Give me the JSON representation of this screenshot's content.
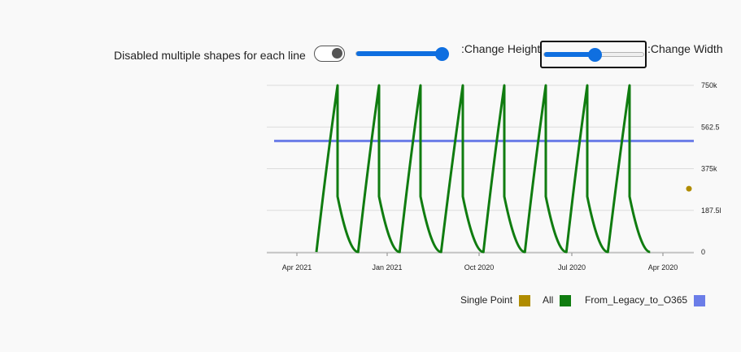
{
  "controls": {
    "toggle_label": "Disabled multiple shapes for each line",
    "toggle_on": false,
    "height_label": ":Change Height",
    "height_value": 0.92,
    "width_label": ":Change Width",
    "width_value": 0.5
  },
  "chart_data": {
    "type": "line",
    "x_axis": {
      "ticks": [
        "Apr 2021",
        "Jan 2021",
        "Oct 2020",
        "Jul 2020",
        "Apr 2020"
      ],
      "reversed": true
    },
    "y_axis": {
      "position": "right",
      "ticks": [
        "750k",
        "562.5",
        "375k",
        "187.5l",
        "0"
      ],
      "range": [
        0,
        750000
      ]
    },
    "grid": true,
    "legend_position": "bottom-right",
    "series": [
      {
        "name": "All",
        "color": "#107c10",
        "cycles": 8,
        "cycle_peak": 750000,
        "cycle_drop_to": 250000
      },
      {
        "name": "From_Legacy_to_O365",
        "color": "#6b7de8",
        "values": [
          500000,
          500000
        ]
      },
      {
        "name": "Single Point",
        "color": "#b08c00",
        "values": [
          285000
        ]
      }
    ],
    "legend": [
      {
        "label": "Single Point",
        "color": "#b08c00"
      },
      {
        "label": "All",
        "color": "#107c10"
      },
      {
        "label": "From_Legacy_to_O365",
        "color": "#6b7de8"
      }
    ]
  }
}
